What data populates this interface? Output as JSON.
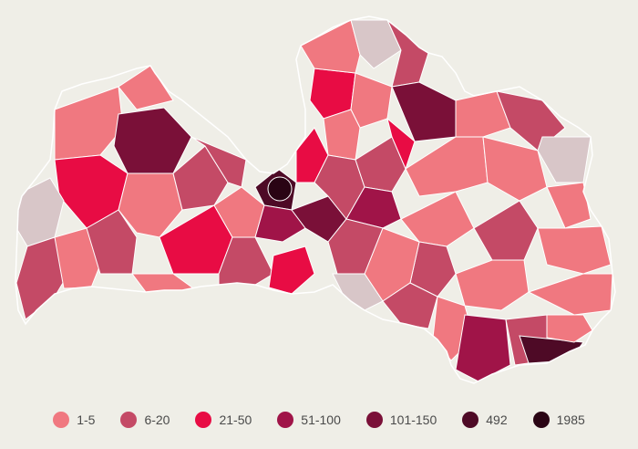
{
  "legend": {
    "items": [
      {
        "label": "1-5",
        "color": "#f07880"
      },
      {
        "label": "6-20",
        "color": "#c44a66"
      },
      {
        "label": "21-50",
        "color": "#e80c44"
      },
      {
        "label": "51-100",
        "color": "#a01448"
      },
      {
        "label": "101-150",
        "color": "#7a1038"
      },
      {
        "label": "492",
        "color": "#4e0a26"
      },
      {
        "label": "1985",
        "color": "#2a0414"
      }
    ],
    "no_data_color": "#d8c6c8"
  },
  "map": {
    "region": "Latvia",
    "border_color": "#ffffff"
  }
}
